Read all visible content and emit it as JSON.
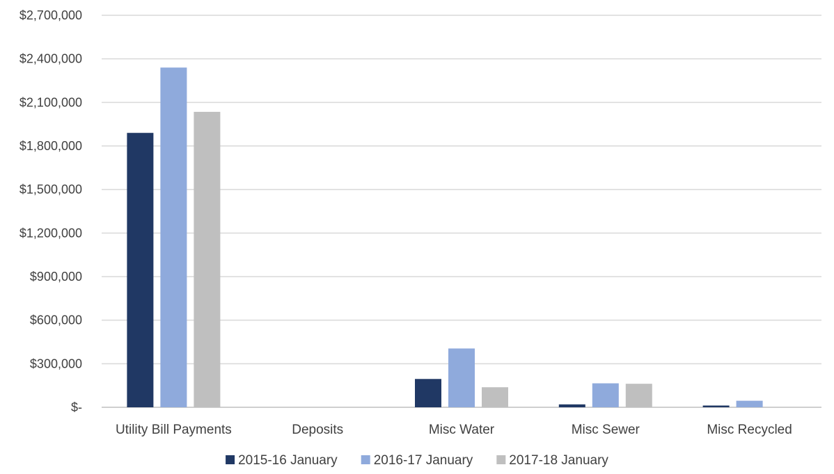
{
  "chart_data": {
    "type": "bar",
    "categories": [
      "Utility Bill Payments",
      "Deposits",
      "Misc Water",
      "Misc Sewer",
      "Misc Recycled"
    ],
    "series": [
      {
        "name": "2015-16 January",
        "color": "#203864",
        "values": [
          1890000,
          0,
          195000,
          20000,
          12000
        ]
      },
      {
        "name": "2016-17 January",
        "color": "#8faadc",
        "values": [
          2340000,
          0,
          405000,
          165000,
          45000
        ]
      },
      {
        "name": "2017-18 January",
        "color": "#bfbfbf",
        "values": [
          2035000,
          0,
          138000,
          162000,
          0
        ]
      }
    ],
    "yticks": [
      0,
      300000,
      600000,
      900000,
      1200000,
      1500000,
      1800000,
      2100000,
      2400000,
      2700000
    ],
    "ytick_labels": [
      "$-",
      "$300,000",
      "$600,000",
      "$900,000",
      "$1,200,000",
      "$1,500,000",
      "$1,800,000",
      "$2,100,000",
      "$2,400,000",
      "$2,700,000"
    ],
    "ylim": [
      0,
      2700000
    ],
    "grid": true,
    "legend_position": "bottom"
  }
}
